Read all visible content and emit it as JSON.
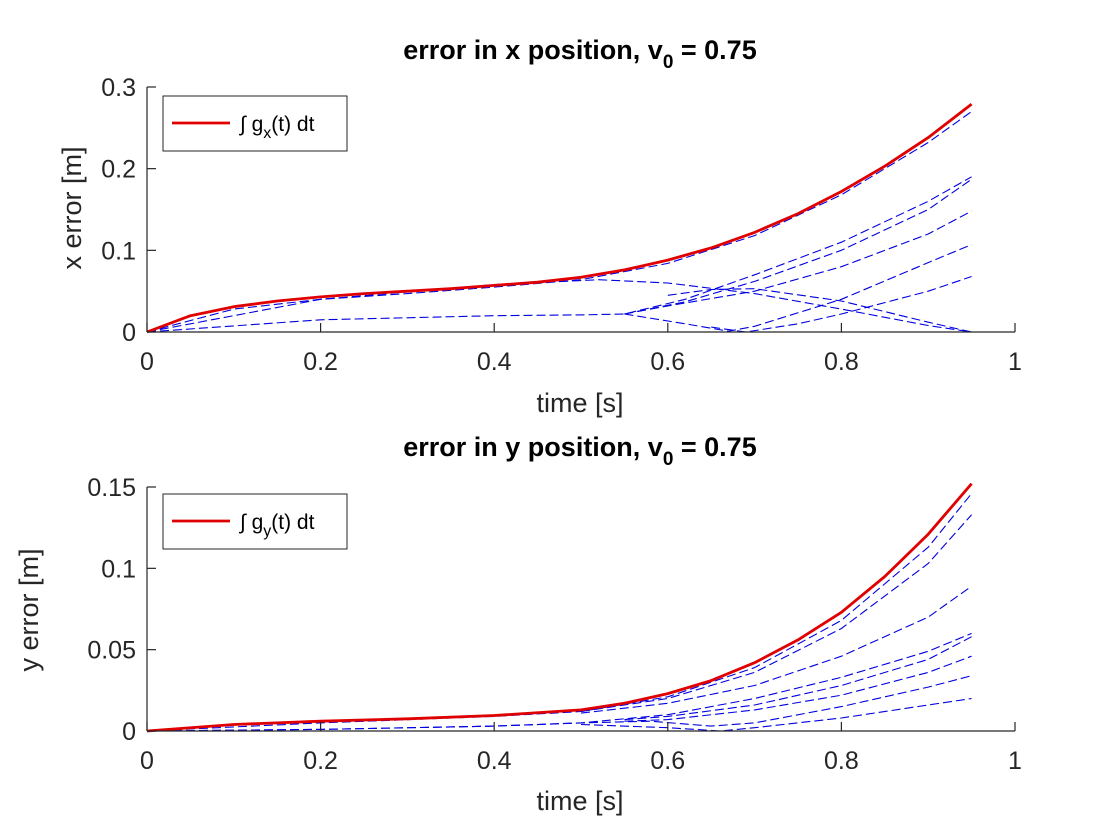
{
  "chart_data": [
    {
      "type": "line",
      "title": "error in x position, v",
      "title_sub": "0",
      "title_tail": " = 0.75",
      "xlabel": "time [s]",
      "ylabel": "x error [m]",
      "xlim": [
        0,
        1
      ],
      "ylim": [
        0,
        0.3
      ],
      "xticks": [
        0,
        0.2,
        0.4,
        0.6,
        0.8,
        1
      ],
      "xtick_labels": [
        "0",
        "0.2",
        "0.4",
        "0.6",
        "0.8",
        "1"
      ],
      "yticks": [
        0,
        0.1,
        0.2,
        0.3
      ],
      "ytick_labels": [
        "0",
        "0.1",
        "0.2",
        "0.3"
      ],
      "grid": false,
      "legend_position": "top-left",
      "legend": {
        "prefix": "∫ g",
        "sub": "x",
        "suffix": "(t) dt"
      },
      "main_color": "#e00000",
      "dashed_color": "#0000e0",
      "main": {
        "x": [
          0,
          0.05,
          0.1,
          0.15,
          0.2,
          0.25,
          0.3,
          0.35,
          0.4,
          0.45,
          0.5,
          0.55,
          0.6,
          0.65,
          0.7,
          0.75,
          0.8,
          0.85,
          0.9,
          0.95
        ],
        "y": [
          0,
          0.02,
          0.031,
          0.038,
          0.043,
          0.047,
          0.05,
          0.053,
          0.057,
          0.061,
          0.067,
          0.076,
          0.088,
          0.103,
          0.122,
          0.145,
          0.172,
          0.203,
          0.238,
          0.279
        ]
      },
      "dashed": [
        {
          "x": [
            0,
            0.1,
            0.2,
            0.3,
            0.4,
            0.5,
            0.6,
            0.7,
            0.8,
            0.9,
            0.95
          ],
          "y": [
            0,
            0.028,
            0.04,
            0.047,
            0.055,
            0.064,
            0.084,
            0.118,
            0.168,
            0.232,
            0.27
          ]
        },
        {
          "x": [
            0,
            0.2,
            0.4,
            0.5,
            0.52,
            0.6,
            0.7,
            0.8,
            0.9,
            0.95
          ],
          "y": [
            0,
            0.04,
            0.058,
            0.063,
            0.064,
            0.06,
            0.047,
            0.028,
            0.008,
            0.0
          ]
        },
        {
          "x": [
            0,
            0.2,
            0.4,
            0.5,
            0.55,
            0.62,
            0.7,
            0.8,
            0.9,
            0.95
          ],
          "y": [
            0,
            0.015,
            0.02,
            0.021,
            0.022,
            0.04,
            0.07,
            0.11,
            0.16,
            0.19
          ]
        },
        {
          "x": [
            0.55,
            0.62,
            0.7,
            0.8,
            0.9,
            0.95
          ],
          "y": [
            0.022,
            0.037,
            0.062,
            0.1,
            0.15,
            0.187
          ]
        },
        {
          "x": [
            0.55,
            0.6,
            0.7,
            0.8,
            0.9,
            0.95
          ],
          "y": [
            0.022,
            0.032,
            0.05,
            0.08,
            0.12,
            0.148
          ]
        },
        {
          "x": [
            0.55,
            0.62,
            0.67,
            0.7,
            0.8,
            0.9,
            0.95
          ],
          "y": [
            0.022,
            0.01,
            0.001,
            0.007,
            0.04,
            0.085,
            0.107
          ]
        },
        {
          "x": [
            0.6,
            0.65,
            0.7,
            0.8,
            0.9,
            0.95
          ],
          "y": [
            0.045,
            0.052,
            0.053,
            0.038,
            0.012,
            0.0
          ]
        },
        {
          "x": [
            0.65,
            0.69,
            0.75,
            0.8,
            0.9,
            0.95
          ],
          "y": [
            0.006,
            0.0,
            0.01,
            0.022,
            0.05,
            0.068
          ]
        }
      ]
    },
    {
      "type": "line",
      "title": "error in y position, v",
      "title_sub": "0",
      "title_tail": " = 0.75",
      "xlabel": "time [s]",
      "ylabel": "y error [m]",
      "xlim": [
        0,
        1
      ],
      "ylim": [
        0,
        0.15
      ],
      "xticks": [
        0,
        0.2,
        0.4,
        0.6,
        0.8,
        1
      ],
      "xtick_labels": [
        "0",
        "0.2",
        "0.4",
        "0.6",
        "0.8",
        "1"
      ],
      "yticks": [
        0,
        0.05,
        0.1,
        0.15
      ],
      "ytick_labels": [
        "0",
        "0.05",
        "0.1",
        "0.15"
      ],
      "grid": false,
      "legend_position": "top-left",
      "legend": {
        "prefix": "∫ g",
        "sub": "y",
        "suffix": "(t) dt"
      },
      "main_color": "#e00000",
      "dashed_color": "#0000e0",
      "main": {
        "x": [
          0,
          0.1,
          0.2,
          0.3,
          0.4,
          0.5,
          0.55,
          0.6,
          0.65,
          0.7,
          0.75,
          0.8,
          0.85,
          0.9,
          0.95
        ],
        "y": [
          0,
          0.004,
          0.006,
          0.0075,
          0.0095,
          0.013,
          0.017,
          0.023,
          0.031,
          0.042,
          0.056,
          0.073,
          0.095,
          0.121,
          0.152
        ]
      },
      "dashed": [
        {
          "x": [
            0,
            0.2,
            0.4,
            0.5,
            0.6,
            0.7,
            0.8,
            0.9,
            0.95
          ],
          "y": [
            0,
            0.005,
            0.009,
            0.012,
            0.021,
            0.039,
            0.068,
            0.113,
            0.146
          ]
        },
        {
          "x": [
            0.5,
            0.6,
            0.7,
            0.8,
            0.9,
            0.95
          ],
          "y": [
            0.012,
            0.02,
            0.036,
            0.063,
            0.103,
            0.133
          ]
        },
        {
          "x": [
            0.5,
            0.6,
            0.7,
            0.8,
            0.9,
            0.95
          ],
          "y": [
            0.011,
            0.017,
            0.028,
            0.046,
            0.07,
            0.089
          ]
        },
        {
          "x": [
            0,
            0.2,
            0.4,
            0.5,
            0.6,
            0.7,
            0.8,
            0.9,
            0.95
          ],
          "y": [
            0,
            0.001,
            0.003,
            0.005,
            0.01,
            0.02,
            0.033,
            0.049,
            0.06
          ]
        },
        {
          "x": [
            0.55,
            0.6,
            0.7,
            0.8,
            0.9,
            0.95
          ],
          "y": [
            0.007,
            0.009,
            0.016,
            0.028,
            0.044,
            0.058
          ]
        },
        {
          "x": [
            0.55,
            0.6,
            0.7,
            0.8,
            0.9,
            0.95
          ],
          "y": [
            0.006,
            0.007,
            0.013,
            0.022,
            0.036,
            0.046
          ]
        },
        {
          "x": [
            0,
            0.2,
            0.4,
            0.5,
            0.58,
            0.65,
            0.7,
            0.8,
            0.9,
            0.95
          ],
          "y": [
            0,
            0.001,
            0.003,
            0.005,
            0.006,
            0.003,
            0.005,
            0.015,
            0.027,
            0.034
          ]
        },
        {
          "x": [
            0.5,
            0.6,
            0.66,
            0.7,
            0.8,
            0.9,
            0.95
          ],
          "y": [
            0.004,
            0.002,
            0.0,
            0.002,
            0.008,
            0.016,
            0.02
          ]
        }
      ]
    }
  ]
}
